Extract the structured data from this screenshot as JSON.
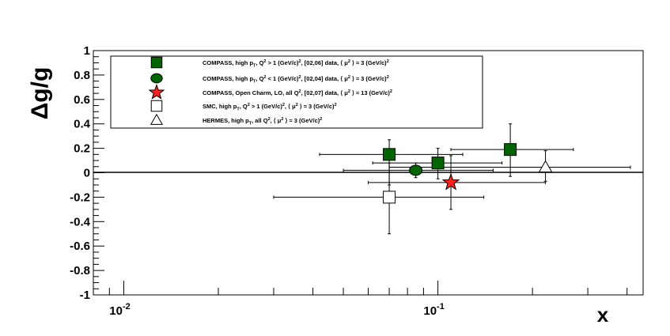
{
  "chart_data": {
    "type": "scatter",
    "xscale": "log",
    "xlim": [
      0.008,
      0.45
    ],
    "ylim": [
      -1,
      1
    ],
    "xlabel": "x",
    "ylabel": "Δg/g",
    "x_tick_labels": [
      {
        "value": 0.01,
        "base": "10",
        "exp": "-2"
      },
      {
        "value": 0.1,
        "base": "10",
        "exp": "-1"
      }
    ],
    "y_ticks": [
      -1,
      -0.8,
      -0.6,
      -0.4,
      -0.2,
      0,
      0.2,
      0.4,
      0.6,
      0.8,
      1
    ],
    "y_tick_labels": [
      "-1",
      "-0.8",
      "-0.6",
      "-0.4",
      "-0.2",
      "0",
      "0.2",
      "0.4",
      "0.6",
      "0.8",
      "1"
    ],
    "zero_line": true,
    "legend_position": "top-left",
    "series": [
      {
        "name": "COMPASS, high pT, Q² > 1 (GeV/c)², [02,06] data, ⟨μ²⟩ ≈ 3 (GeV/c)²",
        "marker": "square",
        "fill": "#006400",
        "stroke": "#000000",
        "points": [
          {
            "x": 0.07,
            "y": 0.15,
            "xlo": 0.042,
            "xhi": 0.12,
            "ylo": -0.1,
            "yhi": 0.27
          },
          {
            "x": 0.1,
            "y": 0.08,
            "xlo": 0.062,
            "xhi": 0.16,
            "ylo": -0.05,
            "yhi": 0.2
          },
          {
            "x": 0.17,
            "y": 0.19,
            "xlo": 0.11,
            "xhi": 0.27,
            "ylo": -0.03,
            "yhi": 0.4
          }
        ]
      },
      {
        "name": "COMPASS, high pT, Q² < 1 (GeV/c)², [02,04] data, ⟨μ²⟩ ≈ 3 (GeV/c)²",
        "marker": "circle",
        "fill": "#006400",
        "stroke": "#000000",
        "points": [
          {
            "x": 0.085,
            "y": 0.02,
            "xlo": 0.05,
            "xhi": 0.15,
            "ylo": -0.04,
            "yhi": 0.08
          }
        ]
      },
      {
        "name": "COMPASS, Open Charm, LO, all Q², [02,07] data, ⟨μ²⟩ ≈ 13 (GeV/c)²",
        "marker": "star",
        "fill": "#ff2020",
        "stroke": "#000000",
        "points": [
          {
            "x": 0.11,
            "y": -0.08,
            "xlo": 0.06,
            "xhi": 0.22,
            "ylo": -0.3,
            "yhi": 0.14
          }
        ]
      },
      {
        "name": "SMC, high pT, Q² > 1 (GeV/c)², ⟨μ²⟩ ≈ 3 (GeV/c)²",
        "marker": "open-square",
        "fill": "#ffffff",
        "stroke": "#000000",
        "points": [
          {
            "x": 0.07,
            "y": -0.2,
            "xlo": 0.03,
            "xhi": 0.14,
            "ylo": -0.5,
            "yhi": 0.08
          }
        ]
      },
      {
        "name": "HERMES, high pT, all Q², ⟨μ²⟩ ≈ 3 (GeV/c)²",
        "marker": "open-triangle",
        "fill": "#ffffff",
        "stroke": "#000000",
        "points": [
          {
            "x": 0.22,
            "y": 0.045,
            "xlo": 0.07,
            "xhi": 0.41,
            "ylo": -0.07,
            "yhi": 0.18
          }
        ]
      }
    ],
    "legend": [
      {
        "marker": "square",
        "parts": [
          "COMPASS, high p",
          "T",
          ", Q",
          "2",
          " > 1 (GeV/c)",
          "2",
          ", [02,06] data, ⟨ μ",
          "2",
          " ⟩ ≈ 3 (GeV/c)",
          "2"
        ],
        "sub": [
          1
        ],
        "sup": [
          3,
          5,
          7,
          9
        ]
      },
      {
        "marker": "circle",
        "parts": [
          "COMPASS, high p",
          "T",
          ", Q",
          "2",
          " < 1 (GeV/c)",
          "2",
          ", [02,04] data, ⟨ μ",
          "2",
          " ⟩ ≈ 3 (GeV/c)",
          "2"
        ],
        "sub": [
          1
        ],
        "sup": [
          3,
          5,
          7,
          9
        ]
      },
      {
        "marker": "star",
        "parts": [
          "COMPASS, Open Charm, LO, all Q",
          "2",
          ", [02,07] data, ⟨ μ",
          "2",
          " ⟩ ≈ 13 (GeV/c)",
          "2"
        ],
        "sub": [],
        "sup": [
          1,
          3,
          5
        ]
      },
      {
        "marker": "open-square",
        "parts": [
          "SMC, high p",
          "T",
          ", Q",
          "2",
          " > 1 (GeV/c)",
          "2",
          ", ⟨ μ",
          "2",
          " ⟩ ≈ 3 (GeV/c)",
          "2"
        ],
        "sub": [
          1
        ],
        "sup": [
          3,
          5,
          7,
          9
        ]
      },
      {
        "marker": "open-triangle",
        "parts": [
          "HERMES, high p",
          "T",
          ", all Q",
          "2",
          ", ⟨ μ",
          "2",
          " ⟩ ≈ 3 (GeV/c)",
          "2"
        ],
        "sub": [
          1
        ],
        "sup": [
          3,
          5,
          7
        ]
      }
    ]
  }
}
